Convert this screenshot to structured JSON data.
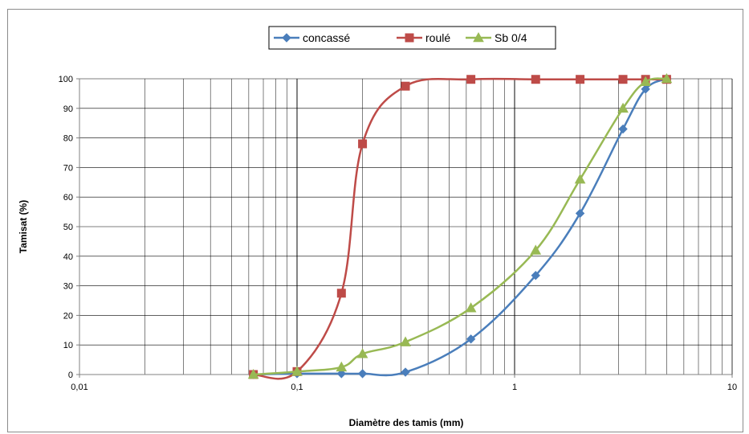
{
  "chart_data": {
    "type": "line",
    "xscale": "log",
    "xlim": [
      0.01,
      10
    ],
    "ylim": [
      0,
      100
    ],
    "xlabel": "Diamètre des tamis (mm)",
    "ylabel": "Tamisat (%)",
    "x_tick_labels": [
      "0,01",
      "0,1",
      "1",
      "10"
    ],
    "y_tick_labels": [
      "0",
      "10",
      "20",
      "30",
      "40",
      "50",
      "60",
      "70",
      "80",
      "90",
      "100"
    ],
    "grid": true,
    "legend_position": "top-center",
    "series": [
      {
        "name": "concassé",
        "color": "#4a7ebb",
        "marker": "diamond",
        "x": [
          0.063,
          0.1,
          0.16,
          0.2,
          0.315,
          0.63,
          1.25,
          2,
          3.15,
          4,
          5
        ],
        "y": [
          0,
          0.3,
          0.3,
          0.3,
          0.8,
          12,
          33.5,
          54.5,
          83,
          96.5,
          100
        ]
      },
      {
        "name": "roulé",
        "color": "#be4b48",
        "marker": "square",
        "x": [
          0.063,
          0.1,
          0.16,
          0.2,
          0.315,
          0.63,
          1.25,
          2,
          3.15,
          4,
          5
        ],
        "y": [
          0,
          1,
          27.5,
          78,
          97.5,
          99.8,
          99.8,
          99.8,
          99.8,
          99.8,
          99.8
        ]
      },
      {
        "name": "Sb 0/4",
        "color": "#98b954",
        "marker": "triangle",
        "x": [
          0.063,
          0.1,
          0.16,
          0.2,
          0.315,
          0.63,
          1.25,
          2,
          3.15,
          4,
          5
        ],
        "y": [
          0,
          1,
          2.5,
          7,
          11,
          22.5,
          42,
          66,
          90,
          99,
          100
        ]
      }
    ]
  }
}
